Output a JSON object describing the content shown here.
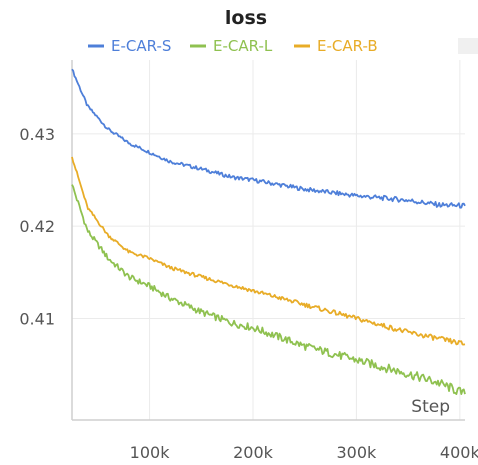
{
  "chart_data": {
    "type": "line",
    "title": "loss",
    "xlabel": "Step",
    "ylabel": "",
    "xlim": [
      25000,
      405000
    ],
    "ylim": [
      0.399,
      0.438
    ],
    "xticks": [
      100000,
      200000,
      300000,
      400000
    ],
    "xtick_labels": [
      "100k",
      "200k",
      "300k",
      "400k"
    ],
    "yticks": [
      0.41,
      0.42,
      0.43
    ],
    "ytick_labels": [
      "0.41",
      "0.42",
      "0.43"
    ],
    "grid": true,
    "legend_position": "top",
    "series": [
      {
        "name": "E-CAR-S",
        "color": "#4e7fd9",
        "x": [
          25000,
          40000,
          60000,
          80000,
          100000,
          120000,
          150000,
          180000,
          200000,
          250000,
          300000,
          350000,
          380000,
          405000
        ],
        "y": [
          0.437,
          0.433,
          0.4305,
          0.429,
          0.428,
          0.427,
          0.4262,
          0.4253,
          0.425,
          0.424,
          0.4233,
          0.4228,
          0.4223,
          0.4222
        ]
      },
      {
        "name": "E-CAR-L",
        "color": "#8fc150",
        "x": [
          25000,
          40000,
          60000,
          80000,
          100000,
          120000,
          150000,
          180000,
          200000,
          250000,
          300000,
          350000,
          380000,
          405000
        ],
        "y": [
          0.4245,
          0.4195,
          0.4165,
          0.4145,
          0.4135,
          0.4122,
          0.4107,
          0.4095,
          0.409,
          0.407,
          0.4055,
          0.404,
          0.403,
          0.4018
        ]
      },
      {
        "name": "E-CAR-B",
        "color": "#e8ac27",
        "x": [
          25000,
          40000,
          60000,
          80000,
          100000,
          120000,
          150000,
          180000,
          200000,
          250000,
          300000,
          350000,
          380000,
          405000
        ],
        "y": [
          0.4275,
          0.422,
          0.419,
          0.4172,
          0.4165,
          0.4155,
          0.4145,
          0.4136,
          0.413,
          0.4115,
          0.41,
          0.4085,
          0.4078,
          0.4072
        ]
      }
    ]
  }
}
